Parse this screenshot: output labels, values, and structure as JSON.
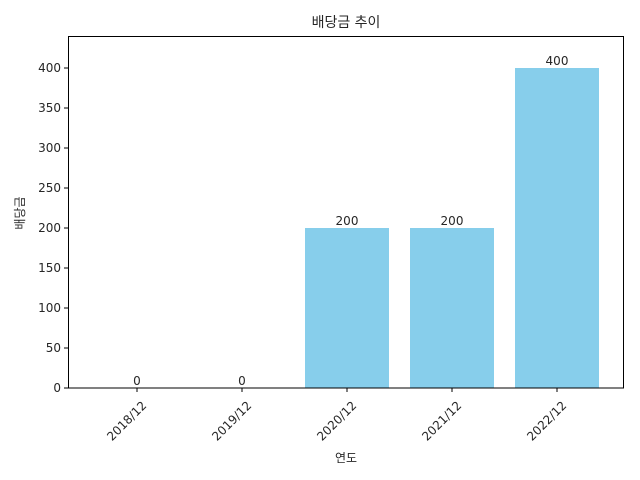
{
  "chart_data": {
    "type": "bar",
    "title": "배당금 추이",
    "xlabel": "연도",
    "ylabel": "배당금",
    "categories": [
      "2018/12",
      "2019/12",
      "2020/12",
      "2021/12",
      "2022/12"
    ],
    "values": [
      0,
      0,
      200,
      200,
      400
    ],
    "data_labels": [
      "0",
      "0",
      "200",
      "200",
      "400"
    ],
    "ylim": [
      0,
      440
    ],
    "yticks": [
      0,
      50,
      100,
      150,
      200,
      250,
      300,
      350,
      400
    ],
    "bar_color": "#87CEEB",
    "grid": false,
    "legend": "none"
  }
}
